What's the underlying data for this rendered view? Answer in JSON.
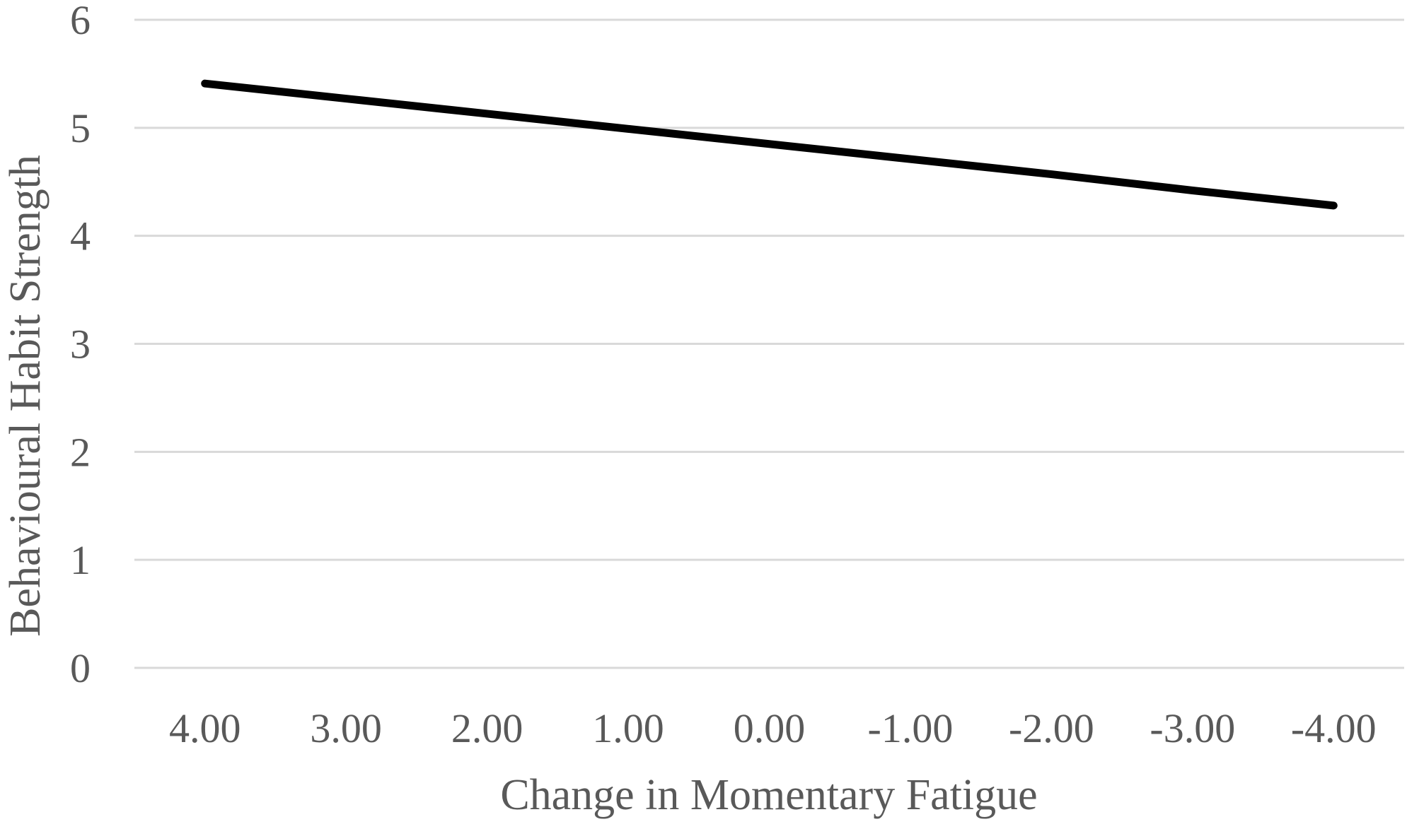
{
  "chart_data": {
    "type": "line",
    "title": "",
    "xlabel": "Change in Momentary Fatigue",
    "ylabel": "Behavioural Habit Strength",
    "categories": [
      "4.00",
      "3.00",
      "2.00",
      "1.00",
      "0.00",
      "-1.00",
      "-2.00",
      "-3.00",
      "-4.00"
    ],
    "x": [
      4,
      3,
      2,
      1,
      0,
      -1,
      -2,
      -3,
      -4
    ],
    "series": [
      {
        "values": [
          5.41,
          5.27,
          5.13,
          4.99,
          4.85,
          4.71,
          4.57,
          4.42,
          4.28
        ],
        "color": "#000000"
      }
    ],
    "yticks": [
      "0",
      "1",
      "2",
      "3",
      "4",
      "5",
      "6"
    ],
    "ylim": [
      0,
      6
    ],
    "grid": true,
    "legend": "none"
  }
}
